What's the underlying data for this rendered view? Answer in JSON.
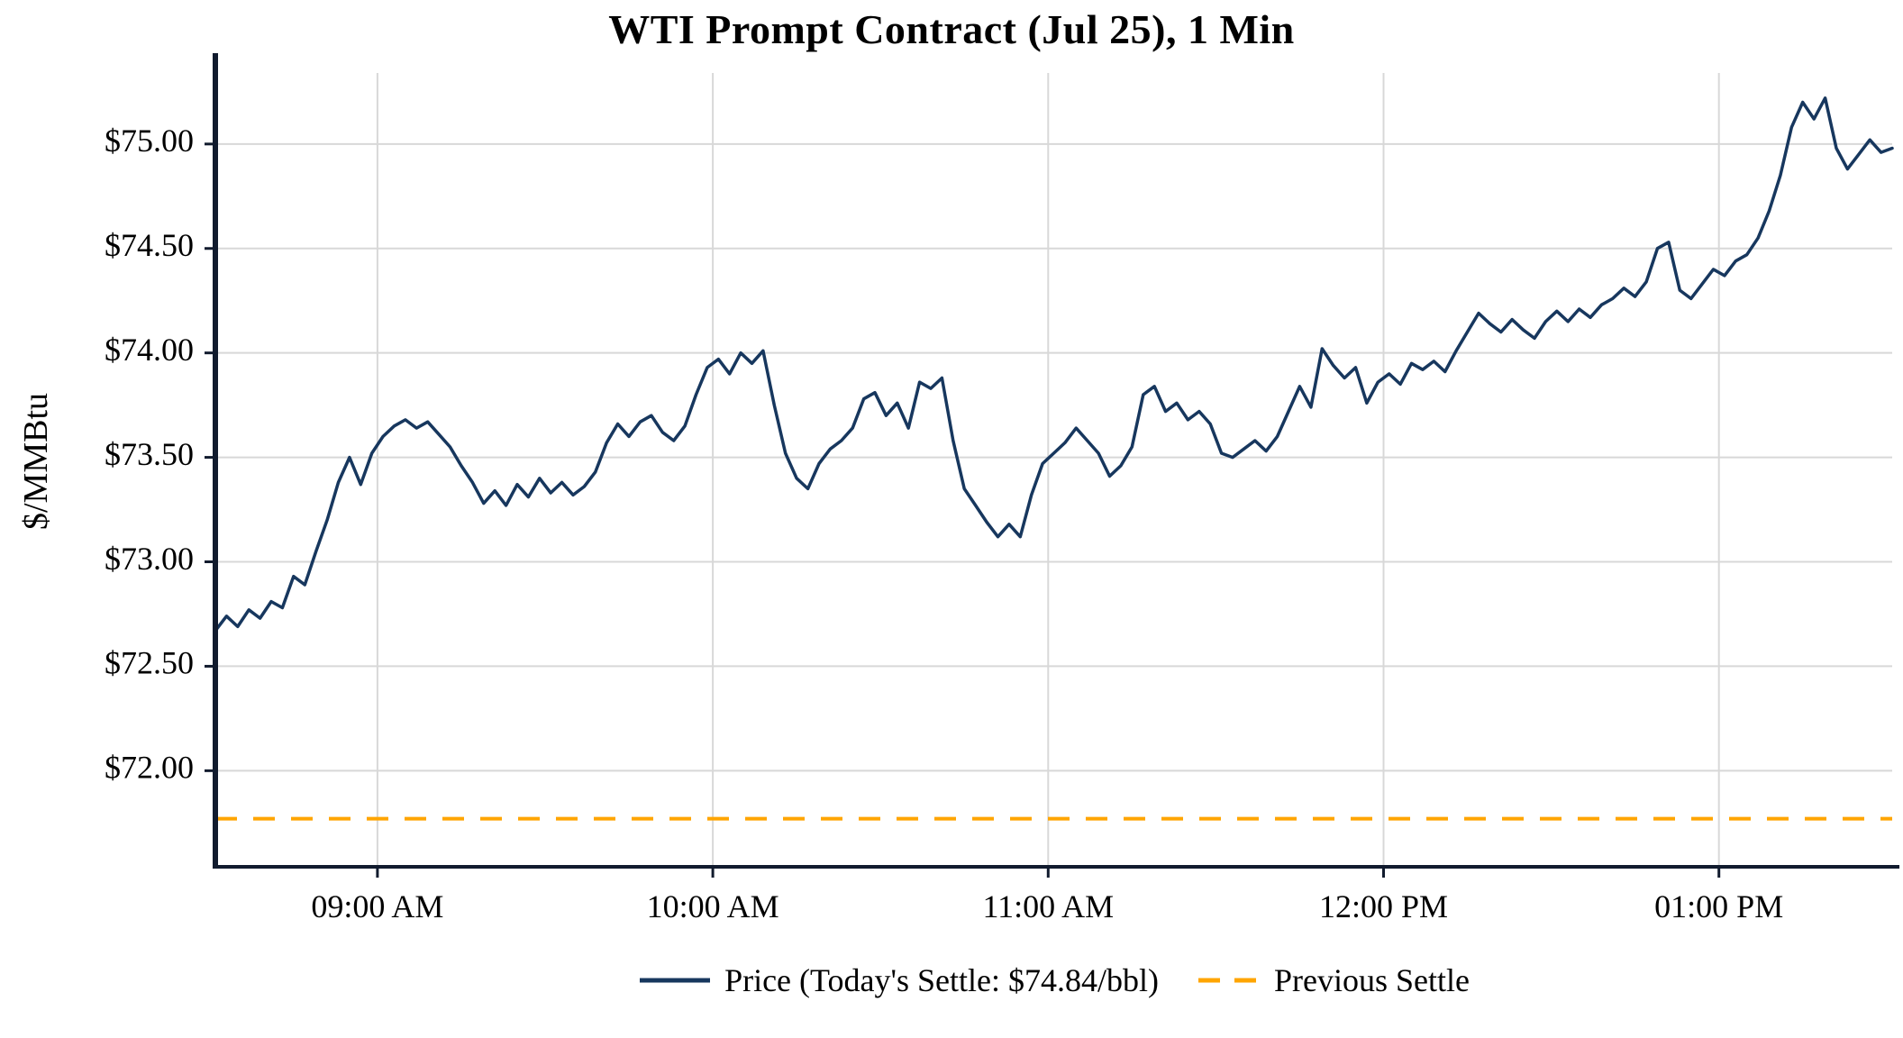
{
  "title": "WTI Prompt Contract (Jul 25), 1 Min",
  "legend": {
    "price_label": "Price (Today's Settle: $74.84/bbl)",
    "prev_settle_label": "Previous Settle"
  },
  "colors": {
    "price_line": "#17375e",
    "previous_settle": "#FFA500",
    "grid": "#d8d8d8",
    "axis": "#111b2e",
    "background": "#ffffff"
  },
  "chart_data": {
    "type": "line",
    "title": "WTI Prompt Contract (Jul 25), 1 Min",
    "xlabel": "",
    "ylabel": "$/MMBtu",
    "grid": true,
    "legend_position": "bottom-center",
    "x_tick_labels": [
      "09:00 AM",
      "10:00 AM",
      "11:00 AM",
      "12:00 PM",
      "01:00 PM"
    ],
    "x_tick_minutes": [
      540,
      600,
      660,
      720,
      780
    ],
    "x_range_minutes": [
      511,
      811
    ],
    "y_ticks": [
      72.0,
      72.5,
      73.0,
      73.5,
      74.0,
      74.5,
      75.0
    ],
    "y_tick_labels": [
      "$72.00",
      "$72.50",
      "$73.00",
      "$73.50",
      "$74.00",
      "$74.50",
      "$75.00"
    ],
    "ylim": [
      71.54,
      75.34
    ],
    "todays_settle": 74.84,
    "previous_settle": 71.77,
    "series": [
      {
        "name": "Price (Today's Settle: $74.84/bbl)",
        "type": "line",
        "style": "solid",
        "color": "#17375e",
        "start_minutes": 511,
        "step_minutes": 2,
        "values": [
          72.67,
          72.74,
          72.69,
          72.77,
          72.73,
          72.81,
          72.78,
          72.93,
          72.89,
          73.05,
          73.2,
          73.38,
          73.5,
          73.37,
          73.52,
          73.6,
          73.65,
          73.68,
          73.64,
          73.67,
          73.61,
          73.55,
          73.46,
          73.38,
          73.28,
          73.34,
          73.27,
          73.37,
          73.31,
          73.4,
          73.33,
          73.38,
          73.32,
          73.36,
          73.43,
          73.57,
          73.66,
          73.6,
          73.67,
          73.7,
          73.62,
          73.58,
          73.65,
          73.8,
          73.93,
          73.97,
          73.9,
          74.0,
          73.95,
          74.01,
          73.75,
          73.52,
          73.4,
          73.35,
          73.47,
          73.54,
          73.58,
          73.64,
          73.78,
          73.81,
          73.7,
          73.76,
          73.64,
          73.86,
          73.83,
          73.88,
          73.58,
          73.35,
          73.27,
          73.19,
          73.12,
          73.18,
          73.12,
          73.32,
          73.47,
          73.52,
          73.57,
          73.64,
          73.58,
          73.52,
          73.41,
          73.46,
          73.55,
          73.8,
          73.84,
          73.72,
          73.76,
          73.68,
          73.72,
          73.66,
          73.52,
          73.5,
          73.54,
          73.58,
          73.53,
          73.6,
          73.72,
          73.84,
          73.74,
          74.02,
          73.94,
          73.88,
          73.93,
          73.76,
          73.86,
          73.9,
          73.85,
          73.95,
          73.92,
          73.96,
          73.91,
          74.01,
          74.1,
          74.19,
          74.14,
          74.1,
          74.16,
          74.11,
          74.07,
          74.15,
          74.2,
          74.15,
          74.21,
          74.17,
          74.23,
          74.26,
          74.31,
          74.27,
          74.34,
          74.5,
          74.53,
          74.3,
          74.26,
          74.33,
          74.4,
          74.37,
          74.44,
          74.47,
          74.55,
          74.68,
          74.85,
          75.08,
          75.2,
          75.12,
          75.22,
          74.98,
          74.88,
          74.95,
          75.02,
          74.96,
          74.98
        ]
      },
      {
        "name": "Previous Settle",
        "type": "hline",
        "style": "dashed",
        "color": "#FFA500",
        "value": 71.77
      }
    ]
  }
}
